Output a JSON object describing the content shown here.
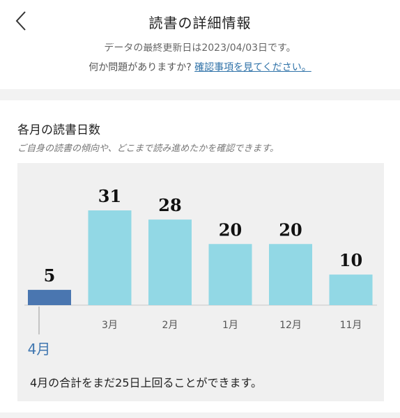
{
  "header": {
    "title": "読書の詳細情報"
  },
  "notice": {
    "partial_line": "データの最終更新日は2023/04/03日です。",
    "question": "何か問題がありますか?",
    "link": "確認事項を見てください。"
  },
  "section": {
    "title": "各月の読書日数",
    "subtitle": "ご自身の読書の傾向や、どこまで読み進めたかを確認できます。"
  },
  "chart_data": {
    "type": "bar",
    "categories": [
      "4月",
      "3月",
      "2月",
      "1月",
      "12月",
      "11月"
    ],
    "values": [
      5,
      31,
      28,
      20,
      20,
      10
    ],
    "highlight_index": 0,
    "highlight_color": "#4a76b0",
    "bar_color": "#92d8e5",
    "highlight_label_color": "#3f76b0",
    "ylim": [
      0,
      31
    ]
  },
  "summary": "4月の合計をまだ25日上回ることができます。"
}
